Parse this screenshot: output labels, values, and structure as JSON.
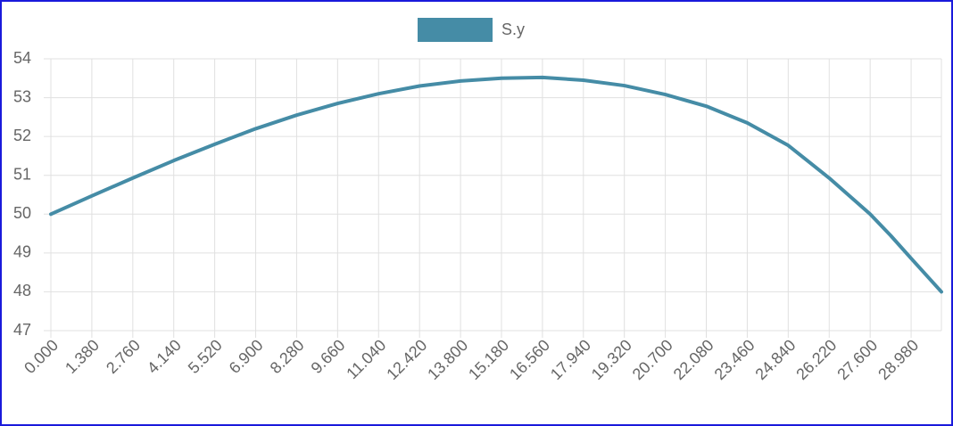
{
  "chart_data": {
    "type": "line",
    "x": [
      0,
      1.38,
      2.76,
      4.14,
      5.52,
      6.9,
      8.28,
      9.66,
      11.04,
      12.42,
      13.8,
      15.18,
      16.56,
      17.94,
      19.32,
      20.7,
      22.08,
      23.46,
      24.84,
      25.53,
      26.22,
      27.6,
      28.29,
      28.98,
      30
    ],
    "series": [
      {
        "name": "S.y",
        "color": "#458ca6",
        "values": [
          50,
          50.47,
          50.93,
          51.38,
          51.8,
          52.2,
          52.55,
          52.85,
          53.1,
          53.3,
          53.43,
          53.5,
          53.52,
          53.45,
          53.31,
          53.08,
          52.78,
          52.35,
          51.77,
          51.35,
          50.93,
          50,
          49.45,
          48.86,
          48
        ]
      }
    ],
    "xlim": [
      0,
      30
    ],
    "xticks": [
      {
        "value": 0,
        "label": "0.000"
      },
      {
        "value": 1.38,
        "label": "1.380"
      },
      {
        "value": 2.76,
        "label": "2.760"
      },
      {
        "value": 4.14,
        "label": "4.140"
      },
      {
        "value": 5.52,
        "label": "5.520"
      },
      {
        "value": 6.9,
        "label": "6.900"
      },
      {
        "value": 8.28,
        "label": "8.280"
      },
      {
        "value": 9.66,
        "label": "9.660"
      },
      {
        "value": 11.04,
        "label": "11.040"
      },
      {
        "value": 12.42,
        "label": "12.420"
      },
      {
        "value": 13.8,
        "label": "13.800"
      },
      {
        "value": 15.18,
        "label": "15.180"
      },
      {
        "value": 16.56,
        "label": "16.560"
      },
      {
        "value": 17.94,
        "label": "17.940"
      },
      {
        "value": 19.32,
        "label": "19.320"
      },
      {
        "value": 20.7,
        "label": "20.700"
      },
      {
        "value": 22.08,
        "label": "22.080"
      },
      {
        "value": 23.46,
        "label": "23.460"
      },
      {
        "value": 24.84,
        "label": "24.840"
      },
      {
        "value": 26.22,
        "label": "26.220"
      },
      {
        "value": 27.6,
        "label": "27.600"
      },
      {
        "value": 28.98,
        "label": "28.980"
      }
    ],
    "ylim": [
      47,
      54
    ],
    "yticks": [
      47,
      48,
      49,
      50,
      51,
      52,
      53,
      54
    ],
    "grid": true
  }
}
